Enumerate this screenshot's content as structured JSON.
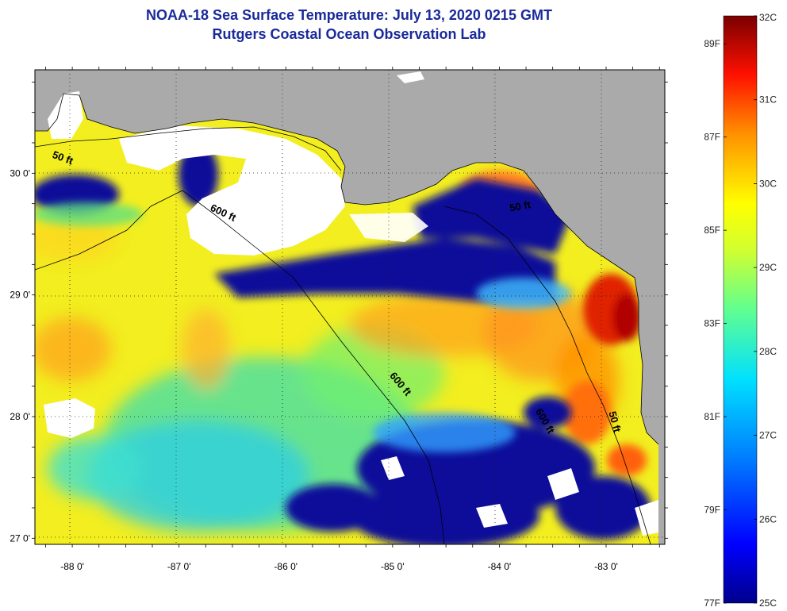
{
  "title": {
    "line1": "NOAA-18 Sea Surface Temperature:  July 13, 2020 0215 GMT",
    "line2": "Rutgers Coastal Ocean Observation Lab"
  },
  "map": {
    "lon_range": [
      -88.35,
      -82.45
    ],
    "lat_range": [
      26.95,
      30.85
    ],
    "lon_ticks": [
      {
        "value": -88,
        "label": "-88 0'"
      },
      {
        "value": -87,
        "label": "-87 0'"
      },
      {
        "value": -86,
        "label": "-86 0'"
      },
      {
        "value": -85,
        "label": "-85 0'"
      },
      {
        "value": -84,
        "label": "-84 0'"
      },
      {
        "value": -83,
        "label": "-83 0'"
      }
    ],
    "lat_ticks": [
      {
        "value": 30,
        "label": "30 0'"
      },
      {
        "value": 29,
        "label": "29 0'"
      },
      {
        "value": 28,
        "label": "28 0'"
      },
      {
        "value": 27,
        "label": "27 0'"
      }
    ],
    "contour_labels": [
      {
        "text": "50 ft",
        "lon": -88.1,
        "lat": 30.1,
        "rotate": 20
      },
      {
        "text": "600 ft",
        "lon": -86.6,
        "lat": 29.65,
        "rotate": 25
      },
      {
        "text": "600 ft",
        "lon": -84.95,
        "lat": 28.25,
        "rotate": 50
      },
      {
        "text": "50 ft",
        "lon": -83.8,
        "lat": 29.7,
        "rotate": -10
      },
      {
        "text": "600 ft",
        "lon": -83.6,
        "lat": 27.95,
        "rotate": 60
      },
      {
        "text": "50 ft",
        "lon": -82.95,
        "lat": 27.95,
        "rotate": 75
      }
    ],
    "colors": {
      "land": "#aaaaaa",
      "cloud": "#ffffff"
    }
  },
  "colorbar": {
    "celsius": [
      "32C",
      "31C",
      "30C",
      "29C",
      "28C",
      "27C",
      "26C",
      "25C"
    ],
    "fahrenheit": [
      "89F",
      "87F",
      "85F",
      "83F",
      "81F",
      "79F",
      "77F"
    ],
    "range_c": [
      25,
      32
    ],
    "range_f": [
      77,
      89.6
    ]
  }
}
